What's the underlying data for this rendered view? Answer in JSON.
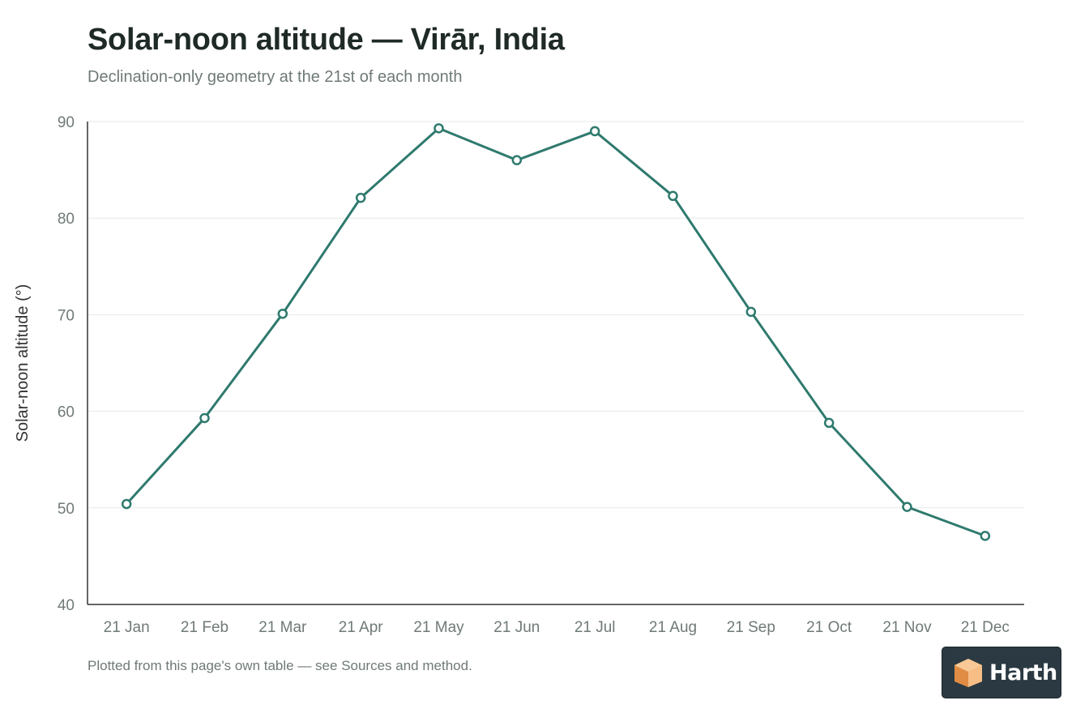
{
  "header": {
    "title": "Solar-noon altitude — Virār, India",
    "subtitle": "Declination-only geometry at the 21st of each month"
  },
  "footer": {
    "note": "Plotted from this page's own table — see Sources and method.",
    "logo_text": "Harth"
  },
  "colors": {
    "line": "#2f7a6e",
    "grid": "#e6e9e8",
    "axis": "#333333",
    "tick_text": "#6f7a77",
    "logo_bg": "#2b3a42",
    "logo_mark": "#f0a766"
  },
  "chart_data": {
    "type": "line",
    "title": "Solar-noon altitude — Virār, India",
    "subtitle": "Declination-only geometry at the 21st of each month",
    "xlabel": "",
    "ylabel": "Solar-noon altitude (°)",
    "categories": [
      "21 Jan",
      "21 Feb",
      "21 Mar",
      "21 Apr",
      "21 May",
      "21 Jun",
      "21 Jul",
      "21 Aug",
      "21 Sep",
      "21 Oct",
      "21 Nov",
      "21 Dec"
    ],
    "series": [
      {
        "values": [
          50.4,
          59.3,
          70.1,
          82.1,
          89.3,
          86.0,
          89.0,
          82.3,
          70.3,
          58.8,
          50.1,
          47.1
        ]
      }
    ],
    "ylim": [
      40,
      90
    ],
    "yticks": [
      40,
      50,
      60,
      70,
      80,
      90
    ],
    "grid": true,
    "markers": "hollow-circle"
  }
}
